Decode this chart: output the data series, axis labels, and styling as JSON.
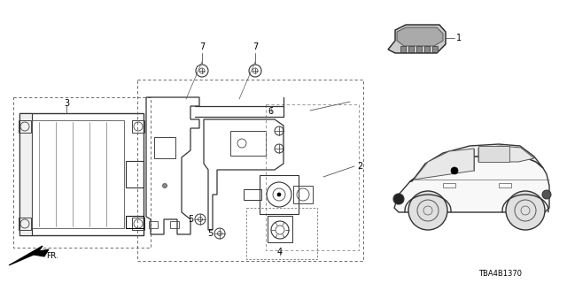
{
  "bg_color": "#ffffff",
  "diagram_id": "TBA4B1370",
  "figsize": [
    6.4,
    3.2
  ],
  "dpi": 100
}
